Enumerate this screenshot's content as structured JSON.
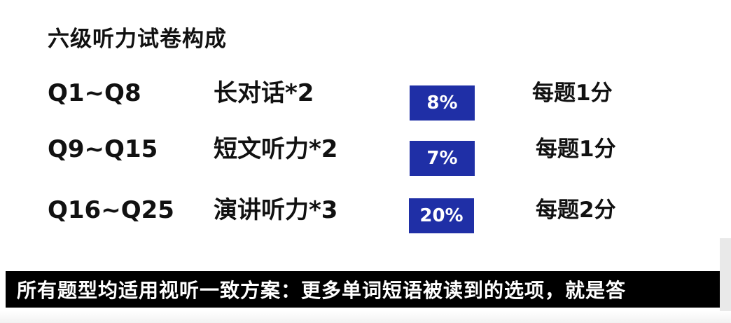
{
  "slide": {
    "title": "六级听力试卷构成",
    "rows": [
      {
        "range": "Q1~Q8",
        "type": "长对话*2",
        "percent": "8%",
        "score": "每题1分"
      },
      {
        "range": "Q9~Q15",
        "type": "短文听力*2",
        "percent": "7%",
        "score": "每题1分"
      },
      {
        "range": "Q16~Q25",
        "type": "演讲听力*3",
        "percent": "20%",
        "score": "每题2分"
      }
    ],
    "badge_color": "#1f2fa6"
  },
  "subtitle": {
    "text": "所有题型均适用视听一致方案：更多单词短语被读到的选项，就是答"
  }
}
